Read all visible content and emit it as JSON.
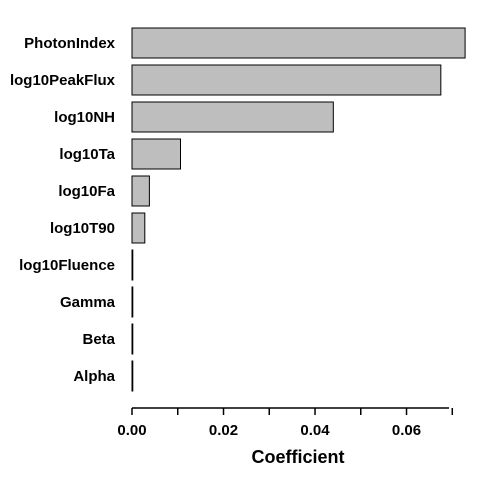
{
  "chart_data": {
    "type": "bar",
    "orientation": "horizontal",
    "categories": [
      "PhotonIndex",
      "log10PeakFlux",
      "log10NH",
      "log10Ta",
      "log10Fa",
      "log10T90",
      "log10Fluence",
      "Gamma",
      "Beta",
      "Alpha"
    ],
    "values": [
      0.0728,
      0.0675,
      0.044,
      0.0106,
      0.0038,
      0.0028,
      0.0001,
      0.0001,
      0.0001,
      0.0001
    ],
    "xlabel": "Coefficient",
    "ylabel": "",
    "title": "",
    "xlim": [
      0.0,
      0.073
    ],
    "xticks": [
      0.0,
      0.02,
      0.04,
      0.06
    ],
    "xtick_labels": [
      "0.00",
      "0.02",
      "0.04",
      "0.06"
    ],
    "bar_color": "#bebebe",
    "bar_edge_color": "#000000",
    "grid": false,
    "legend": "none"
  }
}
